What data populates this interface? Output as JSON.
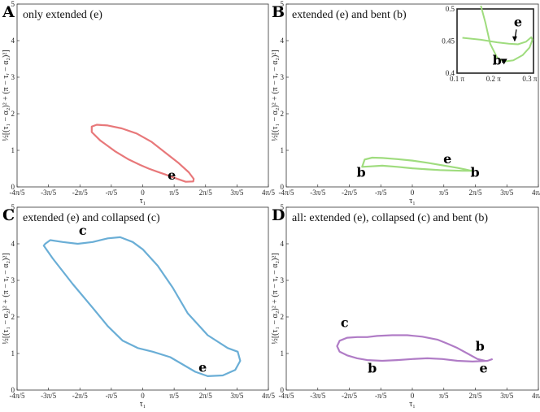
{
  "figure": {
    "xlabel": "τ₁",
    "ylabel": "½[(τ₁ − α₂)² + (π − τᵣ − α₂)²]",
    "x_ticks": [
      "-4π/5",
      "-3π/5",
      "-2π/5",
      "-π/5",
      "0",
      "π/5",
      "2π/5",
      "3π/5",
      "4π/5"
    ],
    "y_ticks": [
      "0",
      "1",
      "2",
      "3",
      "4",
      "5"
    ]
  },
  "chart_data": [
    {
      "id": "A",
      "type": "line",
      "letter": "A",
      "title": "only extended (e)",
      "xlim": [
        -2.513,
        2.513
      ],
      "ylim": [
        0,
        5
      ],
      "color": "#e8787a",
      "series": [
        {
          "closed": true,
          "x": [
            0.57,
            0.45,
            0.28,
            0.12,
            -0.05,
            -0.28,
            -0.55,
            -0.85,
            -1.02,
            -1.02,
            -0.92,
            -0.7,
            -0.42,
            -0.12,
            0.18,
            0.46,
            0.72,
            0.92,
            1.02,
            1.01,
            0.86
          ],
          "y": [
            0.28,
            0.34,
            0.42,
            0.5,
            0.6,
            0.75,
            0.97,
            1.27,
            1.5,
            1.65,
            1.7,
            1.68,
            1.6,
            1.46,
            1.23,
            0.93,
            0.65,
            0.4,
            0.22,
            0.15,
            0.14
          ]
        }
      ],
      "annotations": [
        {
          "text": "e",
          "x": 0.58,
          "y": 0.2
        }
      ]
    },
    {
      "id": "B",
      "type": "line",
      "letter": "B",
      "title": "extended (e) and bent (b)",
      "xlim": [
        -2.513,
        2.513
      ],
      "ylim": [
        0,
        5
      ],
      "color": "#9fdc7e",
      "series": [
        {
          "closed": true,
          "x": [
            -1.0,
            -0.95,
            -0.8,
            -0.6,
            -0.3,
            0.0,
            0.3,
            0.6,
            0.9,
            1.05,
            1.15,
            1.2,
            1.15,
            1.0,
            0.8,
            0.55,
            0.3,
            0.0,
            -0.3,
            -0.6,
            -0.85,
            -1.0
          ],
          "y": [
            0.55,
            0.75,
            0.8,
            0.79,
            0.76,
            0.72,
            0.66,
            0.59,
            0.52,
            0.48,
            0.45,
            0.44,
            0.44,
            0.44,
            0.45,
            0.46,
            0.48,
            0.51,
            0.55,
            0.58,
            0.56,
            0.55
          ]
        }
      ],
      "annotations": [
        {
          "text": "b",
          "x": -1.02,
          "y": 0.28
        },
        {
          "text": "e",
          "x": 0.7,
          "y": 0.64
        },
        {
          "text": "b",
          "x": 1.25,
          "y": 0.28
        }
      ],
      "inset": {
        "xlim": [
          0.314,
          0.974
        ],
        "ylim": [
          0.4,
          0.5
        ],
        "x_ticks": [
          "0.1 π",
          "0.2 π",
          "0.3 π"
        ],
        "x_tick_values": [
          0.314,
          0.628,
          0.942
        ],
        "y_ticks": [
          "0.4",
          "0.45",
          "0.5"
        ],
        "y_tick_values": [
          0.4,
          0.45,
          0.5
        ],
        "x": [
          0.36,
          0.52,
          0.66,
          0.76,
          0.84,
          0.91,
          0.955,
          0.965,
          0.94,
          0.88,
          0.8,
          0.72,
          0.66,
          0.6,
          0.56,
          0.52
        ],
        "y": [
          0.455,
          0.452,
          0.448,
          0.446,
          0.445,
          0.449,
          0.456,
          0.452,
          0.44,
          0.428,
          0.42,
          0.418,
          0.424,
          0.446,
          0.478,
          0.505
        ],
        "annotations": [
          {
            "text": "e",
            "x": 0.84,
            "y": 0.473
          },
          {
            "text": "b",
            "x": 0.66,
            "y": 0.413
          }
        ]
      }
    },
    {
      "id": "C",
      "type": "line",
      "letter": "C",
      "title": "extended (e) and collapsed (c)",
      "xlim": [
        -2.513,
        2.513
      ],
      "ylim": [
        0,
        5
      ],
      "color": "#6aaed6",
      "series": [
        {
          "closed": true,
          "x": [
            -1.95,
            -1.85,
            -1.6,
            -1.3,
            -1.0,
            -0.7,
            -0.45,
            -0.2,
            0.0,
            0.3,
            0.6,
            0.9,
            1.3,
            1.7,
            1.9,
            1.95,
            1.85,
            1.6,
            1.3,
            1.05,
            0.8,
            0.55,
            0.2,
            -0.1,
            -0.4,
            -0.7,
            -1.0,
            -1.4,
            -1.8,
            -1.98
          ],
          "y": [
            4.0,
            4.1,
            4.05,
            4.0,
            4.05,
            4.15,
            4.18,
            4.05,
            3.85,
            3.4,
            2.8,
            2.1,
            1.5,
            1.15,
            1.05,
            0.8,
            0.55,
            0.4,
            0.38,
            0.5,
            0.7,
            0.9,
            1.05,
            1.15,
            1.35,
            1.75,
            2.25,
            2.9,
            3.6,
            3.95
          ]
        }
      ],
      "annotations": [
        {
          "text": "c",
          "x": -1.2,
          "y": 4.25
        },
        {
          "text": "e",
          "x": 1.2,
          "y": 0.5
        }
      ]
    },
    {
      "id": "D",
      "type": "line",
      "letter": "D",
      "title": "all: extended (e), collapsed (c) and bent (b)",
      "xlim": [
        -2.513,
        2.513
      ],
      "ylim": [
        0,
        5
      ],
      "color": "#b07cc6",
      "series": [
        {
          "closed": false,
          "x": [
            1.45,
            1.3,
            1.1,
            0.9,
            0.7,
            0.5,
            0.2,
            -0.1,
            -0.4,
            -0.7,
            -0.9,
            -1.1,
            -1.3,
            -1.45,
            -1.5,
            -1.45,
            -1.3,
            -1.1,
            -0.9,
            -0.6,
            -0.3,
            0.0,
            0.3,
            0.6,
            0.9,
            1.2,
            1.5,
            1.6
          ],
          "y": [
            0.8,
            0.85,
            1.0,
            1.15,
            1.27,
            1.38,
            1.46,
            1.5,
            1.5,
            1.48,
            1.45,
            1.45,
            1.43,
            1.35,
            1.2,
            1.05,
            0.95,
            0.87,
            0.82,
            0.8,
            0.82,
            0.85,
            0.87,
            0.85,
            0.8,
            0.78,
            0.8,
            0.85
          ]
        }
      ],
      "annotations": [
        {
          "text": "c",
          "x": -1.35,
          "y": 1.72
        },
        {
          "text": "b",
          "x": -0.8,
          "y": 0.48
        },
        {
          "text": "b",
          "x": 1.35,
          "y": 1.08
        },
        {
          "text": "e",
          "x": 1.42,
          "y": 0.48
        }
      ]
    }
  ]
}
